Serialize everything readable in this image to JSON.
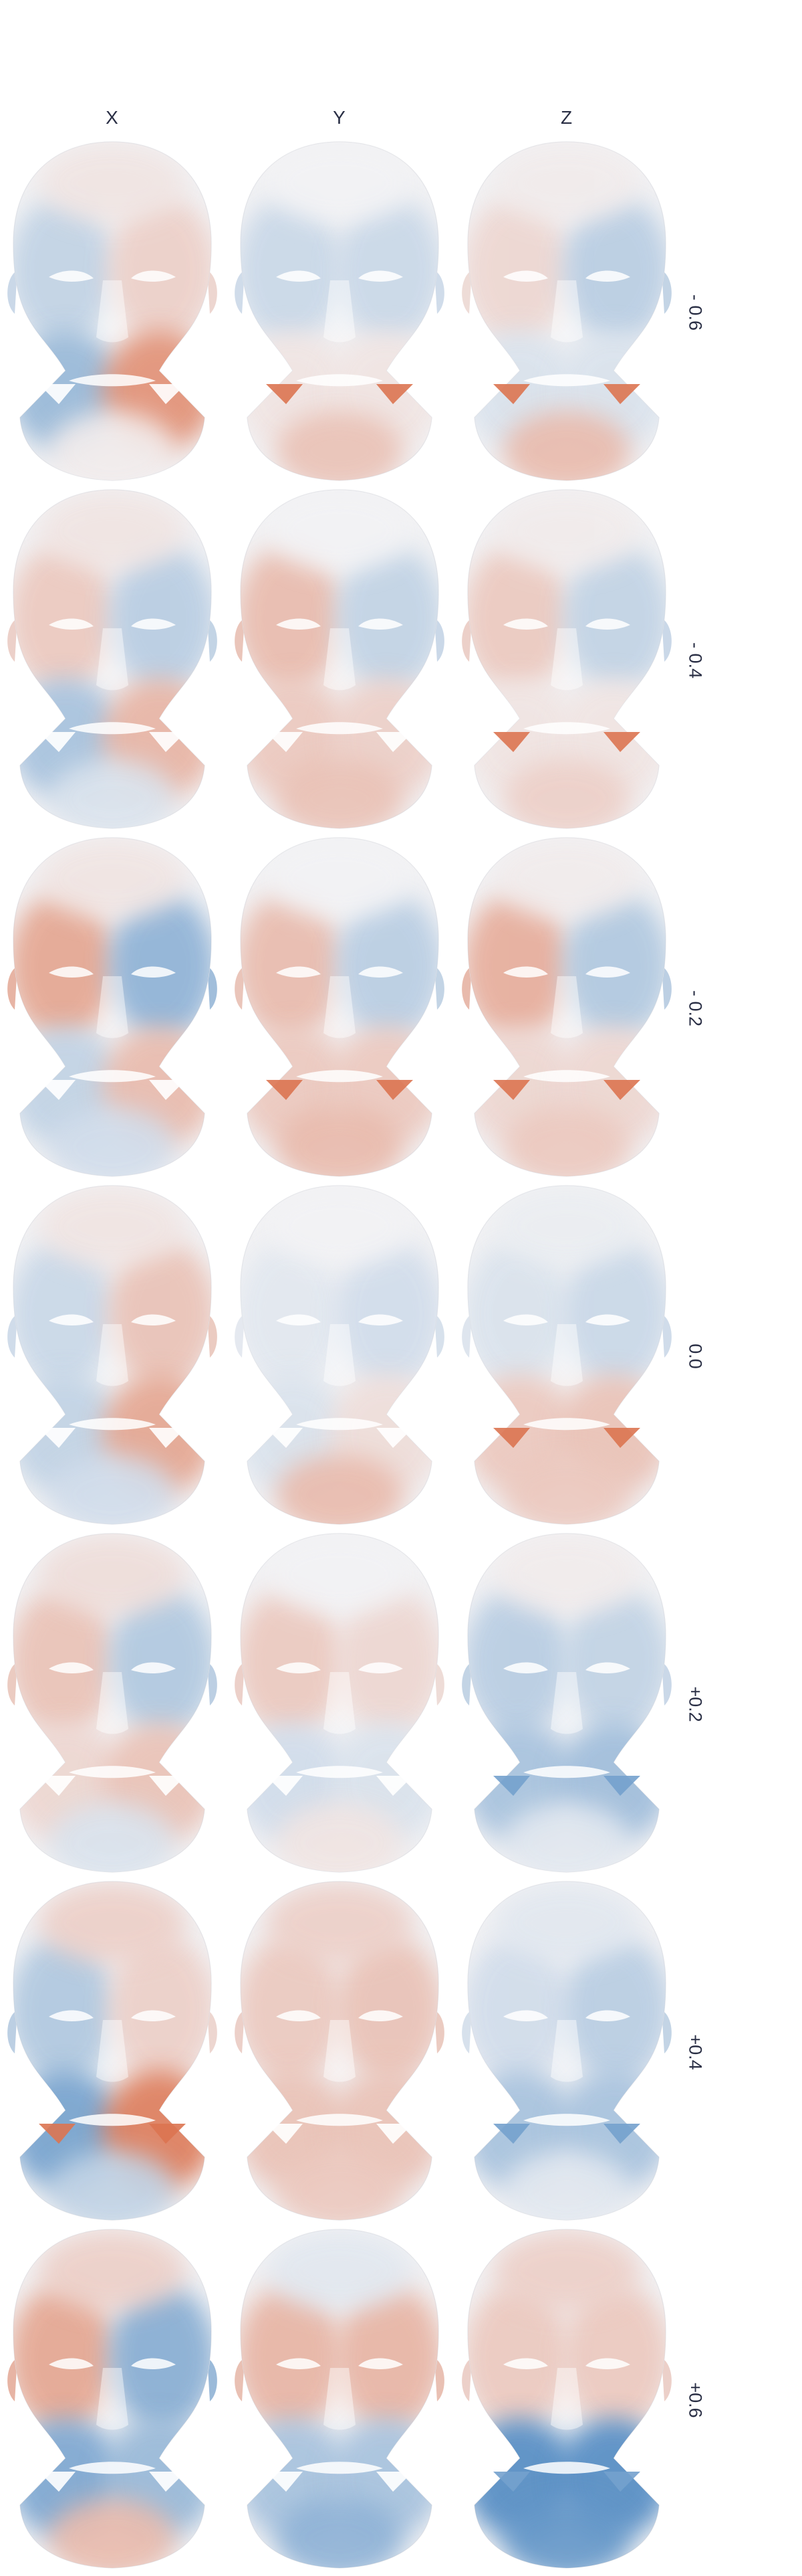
{
  "columns": [
    {
      "label": "X"
    },
    {
      "label": "Y"
    },
    {
      "label": "Z"
    }
  ],
  "rows": [
    {
      "label": "- 0.6"
    },
    {
      "label": "- 0.4"
    },
    {
      "label": "- 0.2"
    },
    {
      "label": "0.0"
    },
    {
      "label": "+0.2"
    },
    {
      "label": "+0.4"
    },
    {
      "label": "+0.6"
    }
  ],
  "colors": {
    "positive": "#d9663f",
    "negative": "#4a86c0",
    "neutral": "#f2f2f4",
    "text": "#2a2f45"
  },
  "shading": [
    [
      {
        "left": -0.3,
        "right": 0.25,
        "lower_left": -0.55,
        "lower_right": 0.7,
        "neck": 0.05,
        "forehead": 0.1,
        "cutouts": "neutral"
      },
      {
        "left": -0.25,
        "right": -0.25,
        "lower_left": 0.1,
        "lower_right": 0.1,
        "neck": 0.35,
        "forehead": 0.0,
        "cutouts": "positive"
      },
      {
        "left": 0.2,
        "right": -0.35,
        "lower_left": -0.15,
        "lower_right": -0.15,
        "neck": 0.4,
        "forehead": 0.05,
        "cutouts": "positive"
      }
    ],
    [
      {
        "left": 0.3,
        "right": -0.35,
        "lower_left": -0.45,
        "lower_right": 0.45,
        "neck": -0.15,
        "forehead": 0.1,
        "cutouts": "neutral"
      },
      {
        "left": 0.4,
        "right": -0.3,
        "lower_left": 0.3,
        "lower_right": 0.25,
        "neck": 0.35,
        "forehead": 0.0,
        "cutouts": "neutral"
      },
      {
        "left": 0.3,
        "right": -0.3,
        "lower_left": 0.1,
        "lower_right": 0.1,
        "neck": 0.25,
        "forehead": 0.05,
        "cutouts": "positive"
      }
    ],
    [
      {
        "left": 0.55,
        "right": -0.6,
        "lower_left": -0.3,
        "lower_right": 0.4,
        "neck": -0.2,
        "forehead": 0.1,
        "cutouts": "neutral"
      },
      {
        "left": 0.4,
        "right": -0.35,
        "lower_left": 0.3,
        "lower_right": 0.3,
        "neck": 0.4,
        "forehead": 0.0,
        "cutouts": "positive"
      },
      {
        "left": 0.5,
        "right": -0.4,
        "lower_left": 0.2,
        "lower_right": 0.2,
        "neck": 0.3,
        "forehead": 0.05,
        "cutouts": "positive"
      }
    ],
    [
      {
        "left": -0.25,
        "right": 0.35,
        "lower_left": -0.3,
        "lower_right": 0.55,
        "neck": -0.2,
        "forehead": 0.1,
        "cutouts": "neutral"
      },
      {
        "left": -0.1,
        "right": -0.2,
        "lower_left": -0.15,
        "lower_right": 0.15,
        "neck": 0.4,
        "forehead": 0.0,
        "cutouts": "neutral"
      },
      {
        "left": -0.15,
        "right": -0.25,
        "lower_left": 0.3,
        "lower_right": 0.35,
        "neck": 0.3,
        "forehead": -0.05,
        "cutouts": "positive"
      }
    ],
    [
      {
        "left": 0.35,
        "right": -0.4,
        "lower_left": 0.2,
        "lower_right": 0.35,
        "neck": -0.15,
        "forehead": 0.15,
        "cutouts": "neutral"
      },
      {
        "left": 0.3,
        "right": 0.2,
        "lower_left": -0.2,
        "lower_right": -0.15,
        "neck": 0.1,
        "forehead": 0.0,
        "cutouts": "neutral"
      },
      {
        "left": -0.35,
        "right": -0.3,
        "lower_left": -0.45,
        "lower_right": -0.5,
        "neck": -0.1,
        "forehead": 0.05,
        "cutouts": "negative"
      }
    ],
    [
      {
        "left": -0.4,
        "right": 0.25,
        "lower_left": -0.75,
        "lower_right": 0.85,
        "neck": -0.3,
        "forehead": 0.25,
        "cutouts": "positive"
      },
      {
        "left": 0.3,
        "right": 0.35,
        "lower_left": 0.35,
        "lower_right": 0.35,
        "neck": 0.3,
        "forehead": 0.25,
        "cutouts": "neutral"
      },
      {
        "left": -0.2,
        "right": -0.35,
        "lower_left": -0.45,
        "lower_right": -0.45,
        "neck": -0.1,
        "forehead": -0.1,
        "cutouts": "negative"
      }
    ],
    [
      {
        "left": 0.55,
        "right": -0.65,
        "lower_left": -0.7,
        "lower_right": -0.55,
        "neck": 0.4,
        "forehead": 0.25,
        "cutouts": "neutral"
      },
      {
        "left": 0.45,
        "right": 0.45,
        "lower_left": -0.45,
        "lower_right": -0.45,
        "neck": -0.6,
        "forehead": -0.1,
        "cutouts": "neutral"
      },
      {
        "left": 0.3,
        "right": 0.3,
        "lower_left": -0.95,
        "lower_right": -0.95,
        "neck": -0.85,
        "forehead": 0.25,
        "cutouts": "negative"
      }
    ]
  ]
}
